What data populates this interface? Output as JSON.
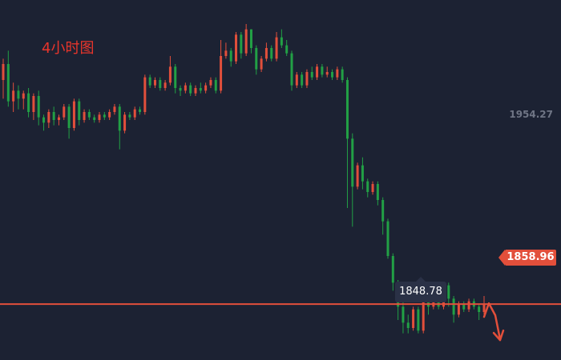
{
  "title": "4小时图",
  "chart_data": {
    "type": "candlestick",
    "axis_label": "1954.27",
    "current_price": 1858.96,
    "current_price_label": "1858.96",
    "low_label": "1848.78",
    "ylim": [
      1838,
      1973
    ],
    "candles": [
      [
        1943,
        1949,
        1936,
        1951
      ],
      [
        1949,
        1935,
        1933,
        1954
      ],
      [
        1935,
        1939,
        1931,
        1942
      ],
      [
        1939,
        1936,
        1932,
        1941
      ],
      [
        1936,
        1938,
        1932,
        1939
      ],
      [
        1938,
        1931,
        1929,
        1940
      ],
      [
        1931,
        1937,
        1928,
        1938
      ],
      [
        1937,
        1929,
        1926,
        1939
      ],
      [
        1929,
        1927,
        1924,
        1930
      ],
      [
        1927,
        1931,
        1925,
        1932
      ],
      [
        1931,
        1928,
        1926,
        1933
      ],
      [
        1928,
        1929,
        1926,
        1930
      ],
      [
        1929,
        1933,
        1928,
        1934
      ],
      [
        1933,
        1925,
        1921,
        1934
      ],
      [
        1925,
        1935,
        1924,
        1936
      ],
      [
        1935,
        1928,
        1926,
        1936
      ],
      [
        1928,
        1931,
        1927,
        1932
      ],
      [
        1931,
        1929,
        1928,
        1932
      ],
      [
        1929,
        1928,
        1927,
        1930
      ],
      [
        1928,
        1930,
        1927,
        1931
      ],
      [
        1930,
        1929,
        1928,
        1931
      ],
      [
        1929,
        1931,
        1928,
        1932
      ],
      [
        1931,
        1933,
        1930,
        1934
      ],
      [
        1933,
        1924,
        1917,
        1934
      ],
      [
        1924,
        1930,
        1923,
        1931
      ],
      [
        1930,
        1929,
        1928,
        1931
      ],
      [
        1929,
        1932,
        1928,
        1933
      ],
      [
        1932,
        1931,
        1930,
        1933
      ],
      [
        1931,
        1944,
        1930,
        1945
      ],
      [
        1944,
        1941,
        1940,
        1945
      ],
      [
        1941,
        1943,
        1940,
        1944
      ],
      [
        1943,
        1940,
        1939,
        1944
      ],
      [
        1940,
        1942,
        1939,
        1943
      ],
      [
        1942,
        1948,
        1941,
        1952
      ],
      [
        1948,
        1940,
        1938,
        1949
      ],
      [
        1940,
        1939,
        1937,
        1941
      ],
      [
        1939,
        1941,
        1938,
        1942
      ],
      [
        1941,
        1938,
        1937,
        1942
      ],
      [
        1938,
        1940,
        1937,
        1941
      ],
      [
        1940,
        1939,
        1938,
        1942
      ],
      [
        1939,
        1941,
        1938,
        1942
      ],
      [
        1941,
        1943,
        1940,
        1944
      ],
      [
        1943,
        1939,
        1938,
        1944
      ],
      [
        1939,
        1952,
        1938,
        1958
      ],
      [
        1952,
        1954,
        1951,
        1957
      ],
      [
        1954,
        1950,
        1948,
        1955
      ],
      [
        1950,
        1960,
        1949,
        1961
      ],
      [
        1960,
        1953,
        1951,
        1961
      ],
      [
        1953,
        1962,
        1952,
        1964
      ],
      [
        1962,
        1955,
        1953,
        1962
      ],
      [
        1955,
        1947,
        1945,
        1956
      ],
      [
        1947,
        1951,
        1946,
        1952
      ],
      [
        1951,
        1955,
        1950,
        1957
      ],
      [
        1955,
        1951,
        1950,
        1956
      ],
      [
        1951,
        1959,
        1950,
        1961
      ],
      [
        1959,
        1956,
        1955,
        1962
      ],
      [
        1956,
        1953,
        1952,
        1958
      ],
      [
        1953,
        1941,
        1939,
        1954
      ],
      [
        1941,
        1945,
        1940,
        1946
      ],
      [
        1945,
        1941,
        1940,
        1946
      ],
      [
        1941,
        1946,
        1940,
        1947
      ],
      [
        1946,
        1944,
        1943,
        1948
      ],
      [
        1944,
        1948,
        1943,
        1949
      ],
      [
        1948,
        1945,
        1944,
        1949
      ],
      [
        1945,
        1946,
        1944,
        1948
      ],
      [
        1946,
        1944,
        1943,
        1947
      ],
      [
        1944,
        1947,
        1943,
        1948
      ],
      [
        1947,
        1943,
        1942,
        1948
      ],
      [
        1943,
        1921,
        1895,
        1944
      ],
      [
        1921,
        1903,
        1888,
        1923
      ],
      [
        1903,
        1911,
        1902,
        1912
      ],
      [
        1911,
        1905,
        1902,
        1914
      ],
      [
        1905,
        1901,
        1899,
        1906
      ],
      [
        1901,
        1904,
        1900,
        1905
      ],
      [
        1904,
        1898,
        1896,
        1905
      ],
      [
        1898,
        1890,
        1885,
        1899
      ],
      [
        1890,
        1877,
        1876,
        1891
      ],
      [
        1877,
        1867,
        1864,
        1878
      ],
      [
        1867,
        1858,
        1853,
        1868
      ],
      [
        1858,
        1852,
        1848,
        1860
      ],
      [
        1852,
        1850,
        1848,
        1855
      ],
      [
        1850,
        1857,
        1849,
        1858
      ],
      [
        1857,
        1849,
        1848,
        1858
      ],
      [
        1849,
        1862,
        1848,
        1863
      ],
      [
        1862,
        1858,
        1855,
        1866
      ],
      [
        1858,
        1860,
        1857,
        1863
      ],
      [
        1860,
        1858,
        1857,
        1862
      ],
      [
        1858,
        1866,
        1857,
        1867
      ],
      [
        1866,
        1861,
        1858,
        1867
      ],
      [
        1861,
        1855,
        1852,
        1862
      ],
      [
        1855,
        1859,
        1854,
        1860
      ],
      [
        1859,
        1857,
        1856,
        1860
      ],
      [
        1857,
        1860,
        1856,
        1861
      ],
      [
        1860,
        1858,
        1857,
        1861
      ],
      [
        1858,
        1856,
        1853,
        1859
      ],
      [
        1856,
        1859,
        1855,
        1862
      ]
    ]
  },
  "colors": {
    "background": "#1c2233",
    "up": "#e24f3b",
    "down": "#22a045",
    "line": "#e24f3b",
    "title": "#e8352b",
    "axis_text": "#6f7585"
  }
}
